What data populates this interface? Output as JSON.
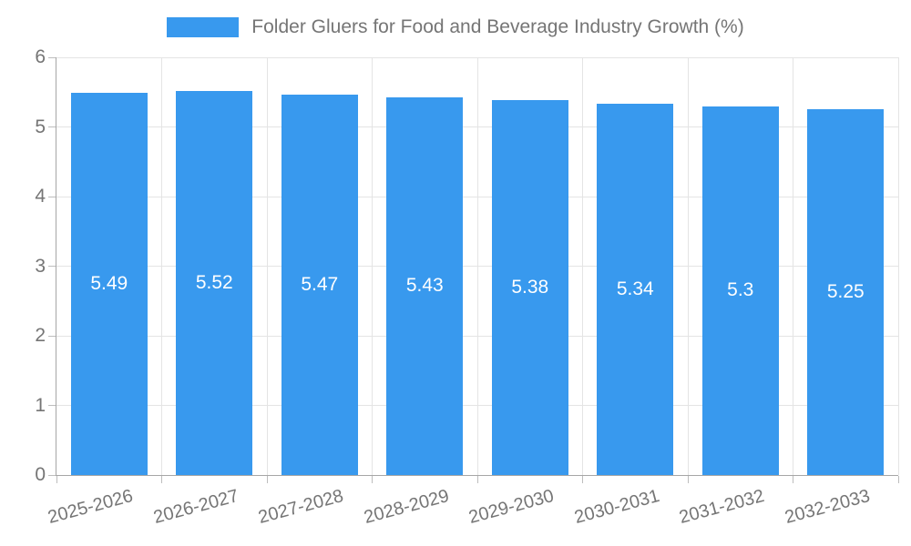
{
  "legend": {
    "label": "Folder Gluers for Food and Beverage Industry Growth (%)",
    "swatch_color": "#3899ee"
  },
  "chart_data": {
    "type": "bar",
    "title": "Folder Gluers for Food and Beverage Industry Growth (%)",
    "categories": [
      "2025-2026",
      "2026-2027",
      "2027-2028",
      "2028-2029",
      "2029-2030",
      "2030-2031",
      "2031-2032",
      "2032-2033"
    ],
    "values": [
      5.49,
      5.52,
      5.47,
      5.43,
      5.38,
      5.34,
      5.3,
      5.25
    ],
    "bar_labels": [
      "5.49",
      "5.52",
      "5.47",
      "5.43",
      "5.38",
      "5.34",
      "5.3",
      "5.25"
    ],
    "xlabel": "",
    "ylabel": "",
    "ylim": [
      0,
      6
    ],
    "yticks": [
      0,
      1,
      2,
      3,
      4,
      5,
      6
    ],
    "grid": true,
    "legend_position": "top",
    "colors": {
      "bar": "#3899ee",
      "bar_label": "#ffffff",
      "gridline": "#e4e4e4",
      "axis_line": "#a6a6a6",
      "tick_text": "#757575"
    }
  }
}
